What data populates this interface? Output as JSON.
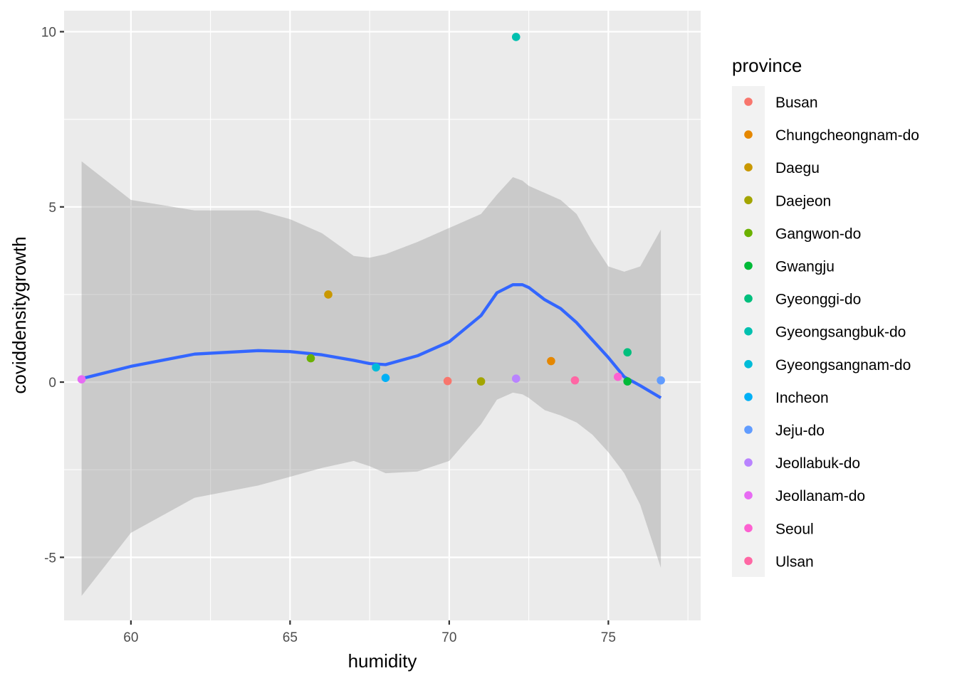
{
  "chart_data": {
    "type": "scatter",
    "xlabel": "humidity",
    "ylabel": "coviddensitygrowth",
    "xlim": [
      57.9,
      77.9
    ],
    "ylim": [
      -6.8,
      10.6
    ],
    "x_ticks": [
      60,
      65,
      70,
      75
    ],
    "x_tick_labels": [
      "60",
      "65",
      "70",
      "75"
    ],
    "y_ticks": [
      -5,
      0,
      5,
      10
    ],
    "y_tick_labels": [
      "-5",
      "0",
      "5",
      "10"
    ],
    "grid": true,
    "legend": {
      "title": "province",
      "position": "right"
    },
    "series": [
      {
        "name": "Busan",
        "color": "#F8766D",
        "points": [
          [
            69.95,
            0.03
          ]
        ]
      },
      {
        "name": "Chungcheongnam-do",
        "color": "#E58700",
        "points": [
          [
            73.2,
            0.6
          ]
        ]
      },
      {
        "name": "Daegu",
        "color": "#C99800",
        "points": [
          [
            66.2,
            2.5
          ]
        ]
      },
      {
        "name": "Daejeon",
        "color": "#A3A500",
        "points": [
          [
            71.0,
            0.02
          ]
        ]
      },
      {
        "name": "Gangwon-do",
        "color": "#6BB100",
        "points": [
          [
            65.65,
            0.68
          ]
        ]
      },
      {
        "name": "Gwangju",
        "color": "#00BA38",
        "points": [
          [
            75.6,
            0.02
          ]
        ]
      },
      {
        "name": "Gyeonggi-do",
        "color": "#00BF7D",
        "points": [
          [
            75.6,
            0.85
          ]
        ]
      },
      {
        "name": "Gyeongsangbuk-do",
        "color": "#00C0AF",
        "points": [
          [
            72.1,
            9.85
          ]
        ]
      },
      {
        "name": "Gyeongsangnam-do",
        "color": "#00BCD8",
        "points": [
          [
            67.7,
            0.42
          ]
        ]
      },
      {
        "name": "Incheon",
        "color": "#00B0F6",
        "points": [
          [
            68.0,
            0.12
          ]
        ]
      },
      {
        "name": "Jeju-do",
        "color": "#619CFF",
        "points": [
          [
            76.65,
            0.05
          ]
        ]
      },
      {
        "name": "Jeollabuk-do",
        "color": "#B983FF",
        "points": [
          [
            72.1,
            0.1
          ]
        ]
      },
      {
        "name": "Jeollanam-do",
        "color": "#E76BF3",
        "points": [
          [
            58.45,
            0.08
          ]
        ]
      },
      {
        "name": "Seoul",
        "color": "#FD61D1",
        "points": [
          [
            75.3,
            0.15
          ]
        ]
      },
      {
        "name": "Ulsan",
        "color": "#FF67A4",
        "points": [
          [
            73.95,
            0.05
          ]
        ]
      }
    ],
    "smooth": {
      "color": "#3366FF",
      "band_color": "#999999",
      "x": [
        58.45,
        60.0,
        62.0,
        64.0,
        65.0,
        66.0,
        67.0,
        67.5,
        68.0,
        69.0,
        70.0,
        71.0,
        71.5,
        72.0,
        72.3,
        72.5,
        73.0,
        73.5,
        74.0,
        74.5,
        75.0,
        75.5,
        76.0,
        76.65
      ],
      "fit": [
        0.1,
        0.45,
        0.8,
        0.9,
        0.87,
        0.78,
        0.62,
        0.53,
        0.5,
        0.75,
        1.15,
        1.9,
        2.55,
        2.78,
        2.78,
        2.7,
        2.35,
        2.1,
        1.7,
        1.2,
        0.7,
        0.15,
        -0.1,
        -0.45
      ],
      "upper": [
        6.3,
        5.2,
        4.9,
        4.9,
        4.65,
        4.25,
        3.6,
        3.55,
        3.65,
        4.0,
        4.4,
        4.8,
        5.35,
        5.85,
        5.75,
        5.6,
        5.4,
        5.2,
        4.8,
        4.0,
        3.3,
        3.15,
        3.3,
        4.35
      ],
      "lower": [
        -6.1,
        -4.3,
        -3.3,
        -2.95,
        -2.7,
        -2.45,
        -2.25,
        -2.4,
        -2.6,
        -2.55,
        -2.25,
        -1.2,
        -0.5,
        -0.3,
        -0.35,
        -0.45,
        -0.8,
        -0.95,
        -1.15,
        -1.5,
        -2.0,
        -2.6,
        -3.5,
        -5.3
      ]
    }
  }
}
